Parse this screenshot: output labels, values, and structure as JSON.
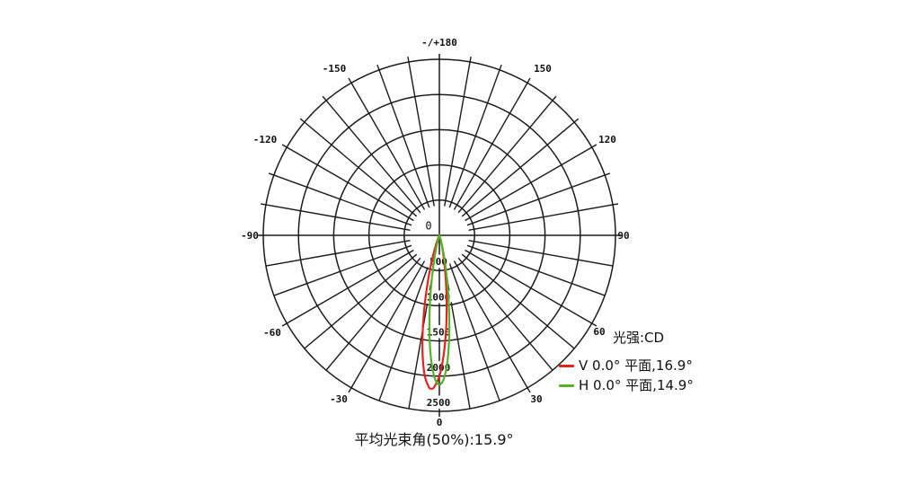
{
  "chart_data": {
    "type": "polar",
    "subtype": "photometric-luminous-intensity-distribution",
    "angle_unit": "deg",
    "angle_zero_position": "bottom",
    "grid": {
      "spoke_step_deg": 10,
      "ring_values": [
        500,
        1000,
        1500,
        2000,
        2500
      ],
      "color": "#1a1a1a",
      "grid_on": true
    },
    "radial_axis": {
      "center_label": "0",
      "tick_labels": [
        "500",
        "1000",
        "1500",
        "2000",
        "2500"
      ],
      "tick_values": [
        500,
        1000,
        1500,
        2000,
        2500
      ],
      "max": 2500,
      "unit": "CD"
    },
    "angle_labels": [
      {
        "angle": 180,
        "text": "-/+180"
      },
      {
        "angle": -150,
        "text": "-150"
      },
      {
        "angle": 150,
        "text": "150"
      },
      {
        "angle": -120,
        "text": "-120"
      },
      {
        "angle": 120,
        "text": "120"
      },
      {
        "angle": -90,
        "text": "-90"
      },
      {
        "angle": 90,
        "text": "90"
      },
      {
        "angle": -60,
        "text": "-60"
      },
      {
        "angle": 60,
        "text": "60"
      },
      {
        "angle": -30,
        "text": "-30"
      },
      {
        "angle": 30,
        "text": "30"
      },
      {
        "angle": 0,
        "text": "0"
      }
    ],
    "legend": {
      "title": "光强:CD",
      "position": "right-bottom"
    },
    "caption": "平均光束角(50%):15.9°",
    "series": [
      {
        "name": "V 0.0° 平面,16.9°",
        "plane": "V 0.0°",
        "beam_angle_deg": 16.9,
        "peak_cd": 2180,
        "peak_angle_deg": -3,
        "color": "#e0241c",
        "points_angle_cd": [
          [
            -28,
            0
          ],
          [
            -24,
            30
          ],
          [
            -22,
            65
          ],
          [
            -20,
            132
          ],
          [
            -18,
            245
          ],
          [
            -16,
            422
          ],
          [
            -14,
            673
          ],
          [
            -12,
            993
          ],
          [
            -10,
            1355
          ],
          [
            -8,
            1710
          ],
          [
            -6,
            1998
          ],
          [
            -4,
            2159
          ],
          [
            -3,
            2180
          ],
          [
            -2,
            2159
          ],
          [
            0,
            1998
          ],
          [
            2,
            1710
          ],
          [
            4,
            1355
          ],
          [
            6,
            993
          ],
          [
            8,
            673
          ],
          [
            10,
            422
          ],
          [
            12,
            245
          ],
          [
            14,
            132
          ],
          [
            16,
            65
          ],
          [
            18,
            30
          ],
          [
            22,
            8
          ],
          [
            26,
            0
          ]
        ]
      },
      {
        "name": "H 0.0° 平面,14.9°",
        "plane": "H 0.0°",
        "beam_angle_deg": 14.9,
        "peak_cd": 2120,
        "peak_angle_deg": 0,
        "color": "#56b02c",
        "points_angle_cd": [
          [
            -26,
            0
          ],
          [
            -20,
            14
          ],
          [
            -18,
            37
          ],
          [
            -16,
            87
          ],
          [
            -14,
            183
          ],
          [
            -12,
            351
          ],
          [
            -10,
            608
          ],
          [
            -8,
            953
          ],
          [
            -6,
            1352
          ],
          [
            -4,
            1736
          ],
          [
            -2,
            2017
          ],
          [
            0,
            2120
          ],
          [
            2,
            2017
          ],
          [
            4,
            1736
          ],
          [
            6,
            1352
          ],
          [
            8,
            953
          ],
          [
            10,
            608
          ],
          [
            12,
            351
          ],
          [
            14,
            183
          ],
          [
            16,
            87
          ],
          [
            18,
            37
          ],
          [
            20,
            14
          ],
          [
            26,
            0
          ]
        ]
      }
    ]
  }
}
